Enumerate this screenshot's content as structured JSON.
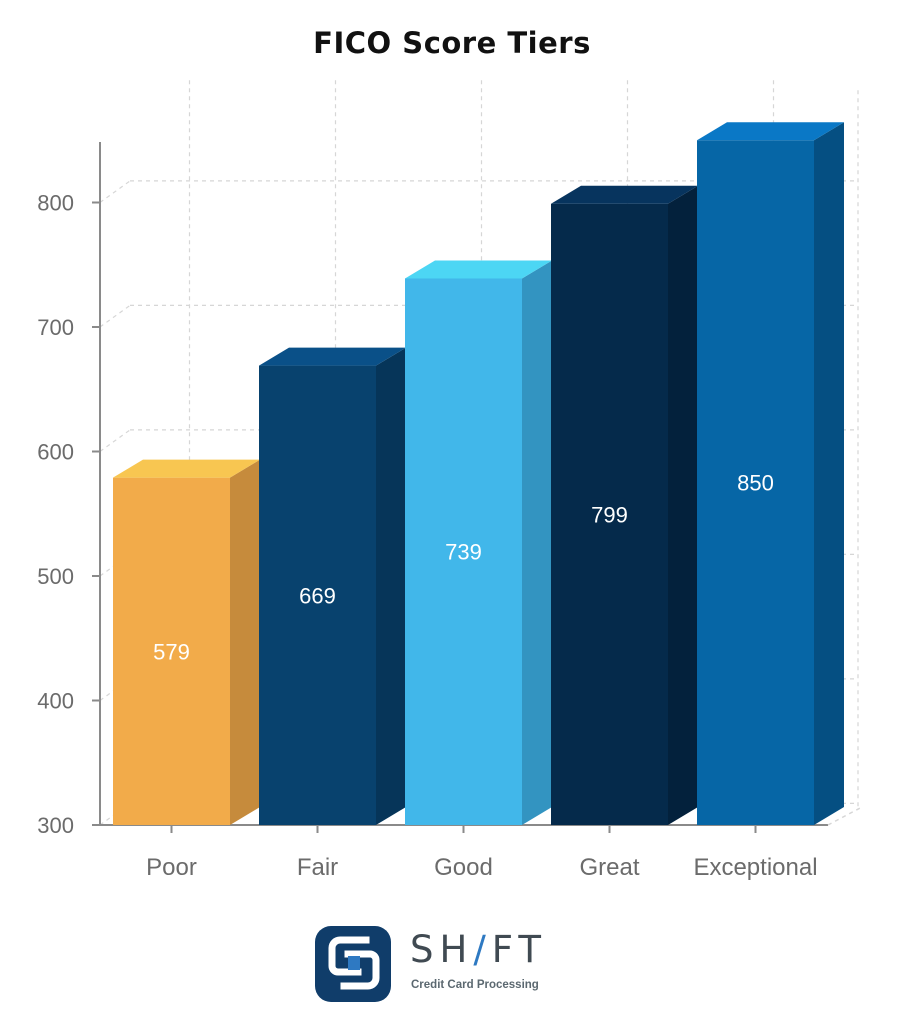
{
  "chart_data": {
    "type": "bar",
    "title": "FICO Score Tiers",
    "categories": [
      "Poor",
      "Fair",
      "Good",
      "Great",
      "Exceptional"
    ],
    "values": [
      579,
      669,
      739,
      799,
      850
    ],
    "data_labels": [
      "579",
      "669",
      "739",
      "799",
      "850"
    ],
    "ylim": [
      300,
      850
    ],
    "yticks": [
      300,
      400,
      500,
      600,
      700,
      800
    ],
    "ytick_labels": [
      "300",
      "400",
      "500",
      "600",
      "700",
      "800"
    ],
    "grid": true,
    "style": "3d",
    "colors": {
      "front": [
        "#f2ab4a",
        "#08426e",
        "#41b7ea",
        "#052a4b",
        "#0666a6"
      ],
      "side": [
        "#c68b3c",
        "#063559",
        "#3394c1",
        "#03213c",
        "#054f82"
      ],
      "top": [
        "#f8c651",
        "#0a5088",
        "#4cd6f4",
        "#07345e",
        "#0a78c6"
      ]
    }
  },
  "brand": {
    "word_before": "SH",
    "word_slash": "/",
    "word_after": "FT",
    "tagline": "Credit Card Processing"
  }
}
